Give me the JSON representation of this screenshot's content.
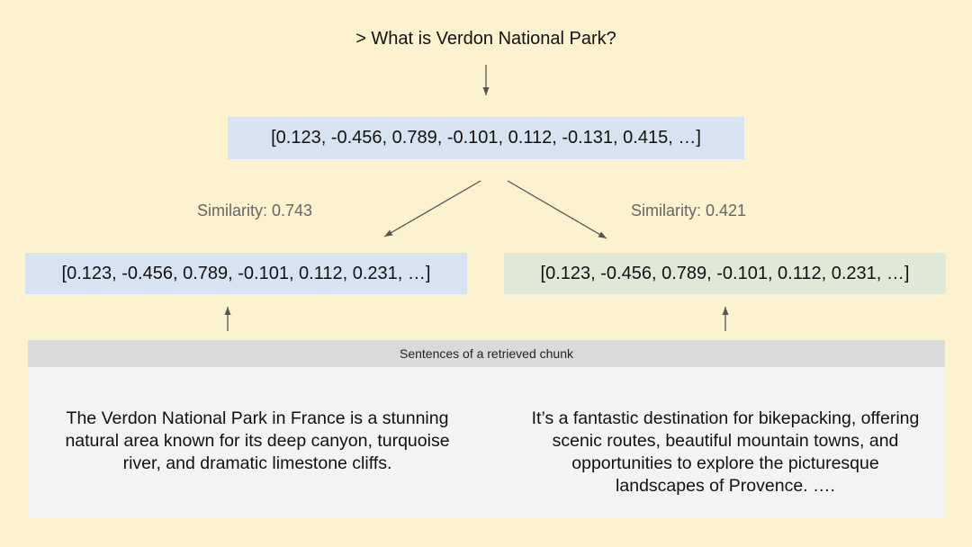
{
  "query": {
    "text": "> What is Verdon National Park?"
  },
  "query_vector": {
    "text": "[0.123, -0.456, 0.789, -0.101, 0.112, -0.131, 0.415, …]"
  },
  "similarities": {
    "left": "Similarity: 0.743",
    "right": "Similarity: 0.421"
  },
  "sentence_vectors": {
    "left": "[0.123, -0.456, 0.789, -0.101, 0.112, 0.231, …]",
    "right": "[0.123, -0.456, 0.789, -0.101, 0.112, 0.231, …]"
  },
  "chunk": {
    "header": "Sentences of a retrieved chunk",
    "sentences": [
      "The Verdon National Park in France is a stunning natural area known for its deep canyon, turquoise river, and dramatic limestone cliffs.",
      "It’s a fantastic destination for bikepacking, offering scenic routes, beautiful mountain towns, and opportunities to explore the picturesque landscapes of Provence. …."
    ]
  },
  "colors": {
    "background": "#fcf2cf",
    "query_vector_fill": "#d8e3f1",
    "left_vector_fill": "#d8e3f1",
    "right_vector_fill": "#dfe9d6",
    "chunk_fill": "#f3f3f3",
    "chunk_header_fill": "#dadada",
    "arrow": "#555555"
  }
}
